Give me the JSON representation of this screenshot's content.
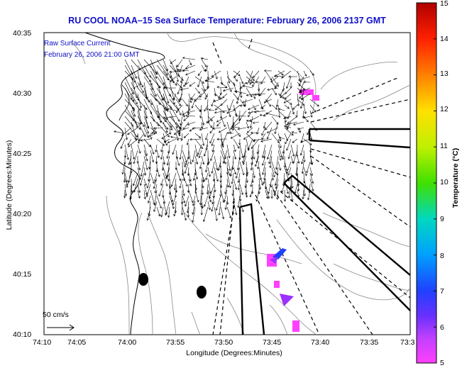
{
  "title": "RU COOL  NOAA–15  Sea Surface Temperature:  February 26, 2006 2137 GMT",
  "legend": {
    "line1": "Raw Surface Current",
    "line2": "February 26, 2006 21:00 GMT"
  },
  "axes": {
    "xlabel": "Longitude (Degrees:Minutes)",
    "ylabel": "Latitude (Degrees:Minutes)",
    "xticks": [
      "74:10",
      "74:05",
      "74:00",
      "73:55",
      "73:50",
      "73:45",
      "73:40",
      "73:35",
      "73:3"
    ],
    "yticks": [
      "40:35",
      "40:30",
      "40:25",
      "40:20",
      "40:15",
      "40:10"
    ]
  },
  "colorbar": {
    "label": "Temperature (°C)",
    "ticks": [
      "15",
      "14",
      "13",
      "12",
      "11",
      "10",
      "9",
      "8",
      "7",
      "6",
      "5"
    ],
    "min": 5,
    "max": 15
  },
  "scale_vector": "50 cm/s",
  "colors": {
    "title": "#1010c8",
    "sst_pink": "#ff40ff",
    "sst_violet": "#9b30ff",
    "sst_blue": "#2040ff"
  }
}
